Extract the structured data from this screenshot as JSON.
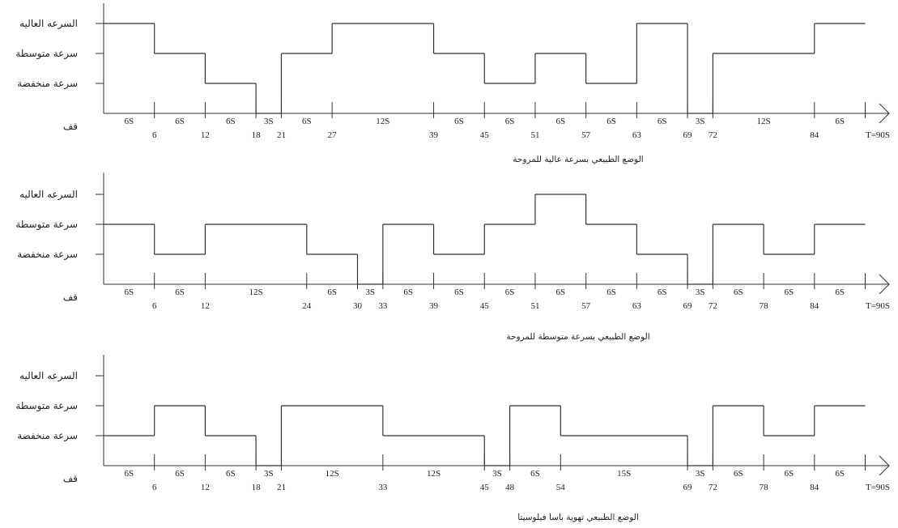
{
  "chart_data": [
    {
      "type": "line",
      "caption": "الوضع الطبيعي بسرعة عالية للمروحة",
      "y_levels": [
        "قف",
        "سرعة منخفضة",
        "سرعة متوسطة",
        "السرعه العاليه"
      ],
      "x_ticks": [
        6,
        12,
        18,
        21,
        27,
        39,
        45,
        51,
        57,
        63,
        69,
        72,
        84
      ],
      "x_end_label": "T=90S",
      "segments": [
        {
          "start": 0,
          "end": 6,
          "label": "6S",
          "level": 3
        },
        {
          "start": 6,
          "end": 12,
          "label": "6S",
          "level": 2
        },
        {
          "start": 12,
          "end": 18,
          "label": "6S",
          "level": 1
        },
        {
          "start": 18,
          "end": 21,
          "label": "3S",
          "level": 0
        },
        {
          "start": 21,
          "end": 27,
          "label": "6S",
          "level": 2
        },
        {
          "start": 27,
          "end": 39,
          "label": "12S",
          "level": 3
        },
        {
          "start": 39,
          "end": 45,
          "label": "6S",
          "level": 2
        },
        {
          "start": 45,
          "end": 51,
          "label": "6S",
          "level": 1
        },
        {
          "start": 51,
          "end": 57,
          "label": "6S",
          "level": 2
        },
        {
          "start": 57,
          "end": 63,
          "label": "6S",
          "level": 1
        },
        {
          "start": 63,
          "end": 69,
          "label": "6S",
          "level": 3
        },
        {
          "start": 69,
          "end": 72,
          "label": "3S",
          "level": 0
        },
        {
          "start": 72,
          "end": 84,
          "label": "12S",
          "level": 2
        },
        {
          "start": 84,
          "end": 90,
          "label": "6S",
          "level": 3
        }
      ]
    },
    {
      "type": "line",
      "caption": "الوضع الطبيعي بسرعة متوسطة للمروحة",
      "y_levels": [
        "قف",
        "سرعة منخفضة",
        "سرعة متوسطة",
        "السرعه العاليه"
      ],
      "x_ticks": [
        6,
        12,
        24,
        30,
        33,
        39,
        45,
        51,
        57,
        63,
        69,
        72,
        78,
        84
      ],
      "x_end_label": "T=90S",
      "segments": [
        {
          "start": 0,
          "end": 6,
          "label": "6S",
          "level": 2
        },
        {
          "start": 6,
          "end": 12,
          "label": "6S",
          "level": 1
        },
        {
          "start": 12,
          "end": 24,
          "label": "12S",
          "level": 2
        },
        {
          "start": 24,
          "end": 30,
          "label": "6S",
          "level": 1
        },
        {
          "start": 30,
          "end": 33,
          "label": "3S",
          "level": 0
        },
        {
          "start": 33,
          "end": 39,
          "label": "6S",
          "level": 2
        },
        {
          "start": 39,
          "end": 45,
          "label": "6S",
          "level": 1
        },
        {
          "start": 45,
          "end": 51,
          "label": "6S",
          "level": 2
        },
        {
          "start": 51,
          "end": 57,
          "label": "6S",
          "level": 3
        },
        {
          "start": 57,
          "end": 63,
          "label": "6S",
          "level": 2
        },
        {
          "start": 63,
          "end": 69,
          "label": "6S",
          "level": 1
        },
        {
          "start": 69,
          "end": 72,
          "label": "3S",
          "level": 0
        },
        {
          "start": 72,
          "end": 78,
          "label": "6S",
          "level": 2
        },
        {
          "start": 78,
          "end": 84,
          "label": "6S",
          "level": 1
        },
        {
          "start": 84,
          "end": 90,
          "label": "6S",
          "level": 2
        }
      ]
    },
    {
      "type": "line",
      "caption": "الوضع الطبيعي تهوية باسا فيلوسيتا",
      "y_levels": [
        "قف",
        "سرعة منخفضة",
        "سرعة متوسطة",
        "السرعه العاليه"
      ],
      "x_ticks": [
        6,
        12,
        18,
        21,
        33,
        45,
        48,
        54,
        69,
        72,
        78,
        84
      ],
      "x_end_label": "T=90S",
      "segments": [
        {
          "start": 0,
          "end": 6,
          "label": "6S",
          "level": 1
        },
        {
          "start": 6,
          "end": 12,
          "label": "6S",
          "level": 2
        },
        {
          "start": 12,
          "end": 18,
          "label": "6S",
          "level": 1
        },
        {
          "start": 18,
          "end": 21,
          "label": "3S",
          "level": 0
        },
        {
          "start": 21,
          "end": 33,
          "label": "12S",
          "level": 2
        },
        {
          "start": 33,
          "end": 45,
          "label": "12S",
          "level": 1
        },
        {
          "start": 45,
          "end": 48,
          "label": "3S",
          "level": 0
        },
        {
          "start": 48,
          "end": 54,
          "label": "6S",
          "level": 2
        },
        {
          "start": 54,
          "end": 69,
          "label": "15S",
          "level": 1
        },
        {
          "start": 69,
          "end": 72,
          "label": "3S",
          "level": 0
        },
        {
          "start": 72,
          "end": 78,
          "label": "6S",
          "level": 2
        },
        {
          "start": 78,
          "end": 84,
          "label": "6S",
          "level": 1
        },
        {
          "start": 84,
          "end": 90,
          "label": "6S",
          "level": 2
        }
      ]
    }
  ]
}
